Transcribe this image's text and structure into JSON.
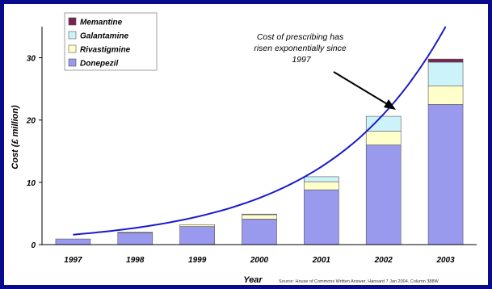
{
  "chart_data": {
    "type": "bar",
    "stacked": true,
    "categories": [
      "1997",
      "1998",
      "1999",
      "2000",
      "2001",
      "2002",
      "2003"
    ],
    "series": [
      {
        "name": "Donepezil",
        "color": "#9999ee",
        "values": [
          0.9,
          1.9,
          2.9,
          4.1,
          8.8,
          16.0,
          22.5
        ]
      },
      {
        "name": "Rivastigmine",
        "color": "#ffffcc",
        "values": [
          0.0,
          0.1,
          0.3,
          0.7,
          1.3,
          2.2,
          3.0
        ]
      },
      {
        "name": "Galantamine",
        "color": "#ccf2fa",
        "values": [
          0.0,
          0.0,
          0.0,
          0.1,
          0.8,
          2.4,
          3.8
        ]
      },
      {
        "name": "Memantine",
        "color": "#7a2252",
        "values": [
          0.0,
          0.0,
          0.0,
          0.0,
          0.0,
          0.0,
          0.5
        ]
      }
    ],
    "trend": {
      "color": "#1a1acc",
      "x_start": 0,
      "y_start": 1.6,
      "x_end": 6.0,
      "y_end": 35.0
    },
    "ylim": [
      0,
      35
    ],
    "yticks": [
      "0",
      "10",
      "20",
      "30"
    ],
    "ylabel": "Cost (£ million)",
    "xlabel": "Year",
    "legend_position": "top-left",
    "annotation": "Cost of prescribing has risen exponentially since 1997",
    "source": "Source: House of Commons Written Answer, Hansard 7 Jan 2004, Column 388W",
    "grid": false
  }
}
